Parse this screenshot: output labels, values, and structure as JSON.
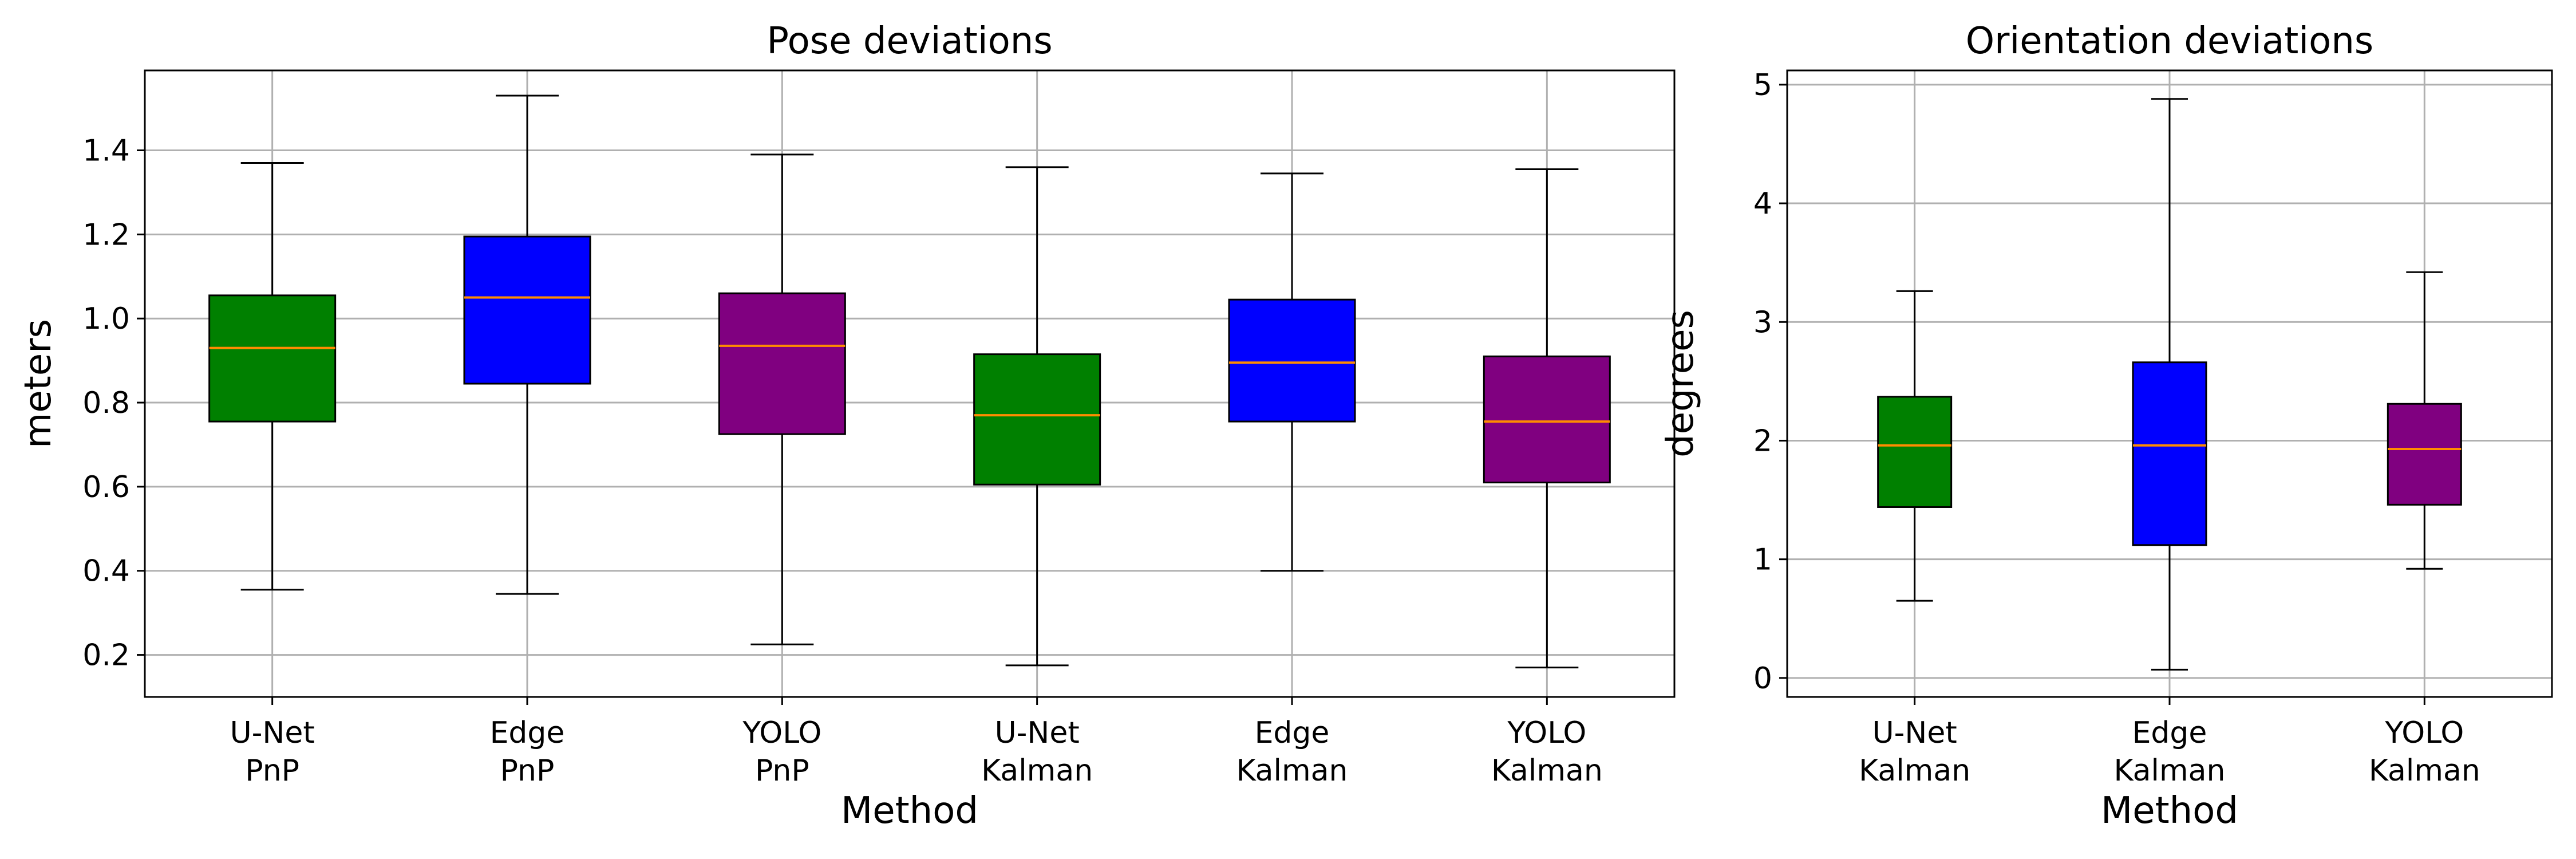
{
  "chart_data": [
    {
      "type": "box",
      "title": "Pose deviations",
      "xlabel": "Method",
      "ylabel": "meters",
      "ylim": [
        0.1,
        1.59
      ],
      "yticks": [
        0.2,
        0.4,
        0.6,
        0.8,
        1.0,
        1.2,
        1.4
      ],
      "ytick_labels": [
        "0.2",
        "0.4",
        "0.6",
        "0.8",
        "1.0",
        "1.2",
        "1.4"
      ],
      "grid": true,
      "categories": [
        {
          "line1": "U-Net",
          "line2": "PnP"
        },
        {
          "line1": "Edge",
          "line2": "PnP"
        },
        {
          "line1": "YOLO",
          "line2": "PnP"
        },
        {
          "line1": "U-Net",
          "line2": "Kalman"
        },
        {
          "line1": "Edge",
          "line2": "Kalman"
        },
        {
          "line1": "YOLO",
          "line2": "Kalman"
        }
      ],
      "boxes": [
        {
          "min": 0.355,
          "q1": 0.755,
          "median": 0.93,
          "q3": 1.055,
          "max": 1.37,
          "color": "#008000"
        },
        {
          "min": 0.345,
          "q1": 0.845,
          "median": 1.05,
          "q3": 1.195,
          "max": 1.53,
          "color": "#0000ff"
        },
        {
          "min": 0.225,
          "q1": 0.725,
          "median": 0.935,
          "q3": 1.06,
          "max": 1.39,
          "color": "#800080"
        },
        {
          "min": 0.175,
          "q1": 0.605,
          "median": 0.77,
          "q3": 0.915,
          "max": 1.36,
          "color": "#008000"
        },
        {
          "min": 0.4,
          "q1": 0.755,
          "median": 0.895,
          "q3": 1.045,
          "max": 1.345,
          "color": "#0000ff"
        },
        {
          "min": 0.17,
          "q1": 0.61,
          "median": 0.755,
          "q3": 0.91,
          "max": 1.355,
          "color": "#800080"
        }
      ]
    },
    {
      "type": "box",
      "title": "Orientation deviations",
      "xlabel": "Method",
      "ylabel": "degrees",
      "ylim": [
        -0.16,
        5.12
      ],
      "yticks": [
        0,
        1,
        2,
        3,
        4,
        5
      ],
      "ytick_labels": [
        "0",
        "1",
        "2",
        "3",
        "4",
        "5"
      ],
      "grid": true,
      "categories": [
        {
          "line1": "U-Net",
          "line2": "Kalman"
        },
        {
          "line1": "Edge",
          "line2": "Kalman"
        },
        {
          "line1": "YOLO",
          "line2": "Kalman"
        }
      ],
      "boxes": [
        {
          "min": 0.65,
          "q1": 1.44,
          "median": 1.96,
          "q3": 2.37,
          "max": 3.26,
          "color": "#008000"
        },
        {
          "min": 0.07,
          "q1": 1.12,
          "median": 1.96,
          "q3": 2.66,
          "max": 4.88,
          "color": "#0000ff"
        },
        {
          "min": 0.92,
          "q1": 1.46,
          "median": 1.93,
          "q3": 2.31,
          "max": 3.42,
          "color": "#800080"
        }
      ]
    }
  ]
}
